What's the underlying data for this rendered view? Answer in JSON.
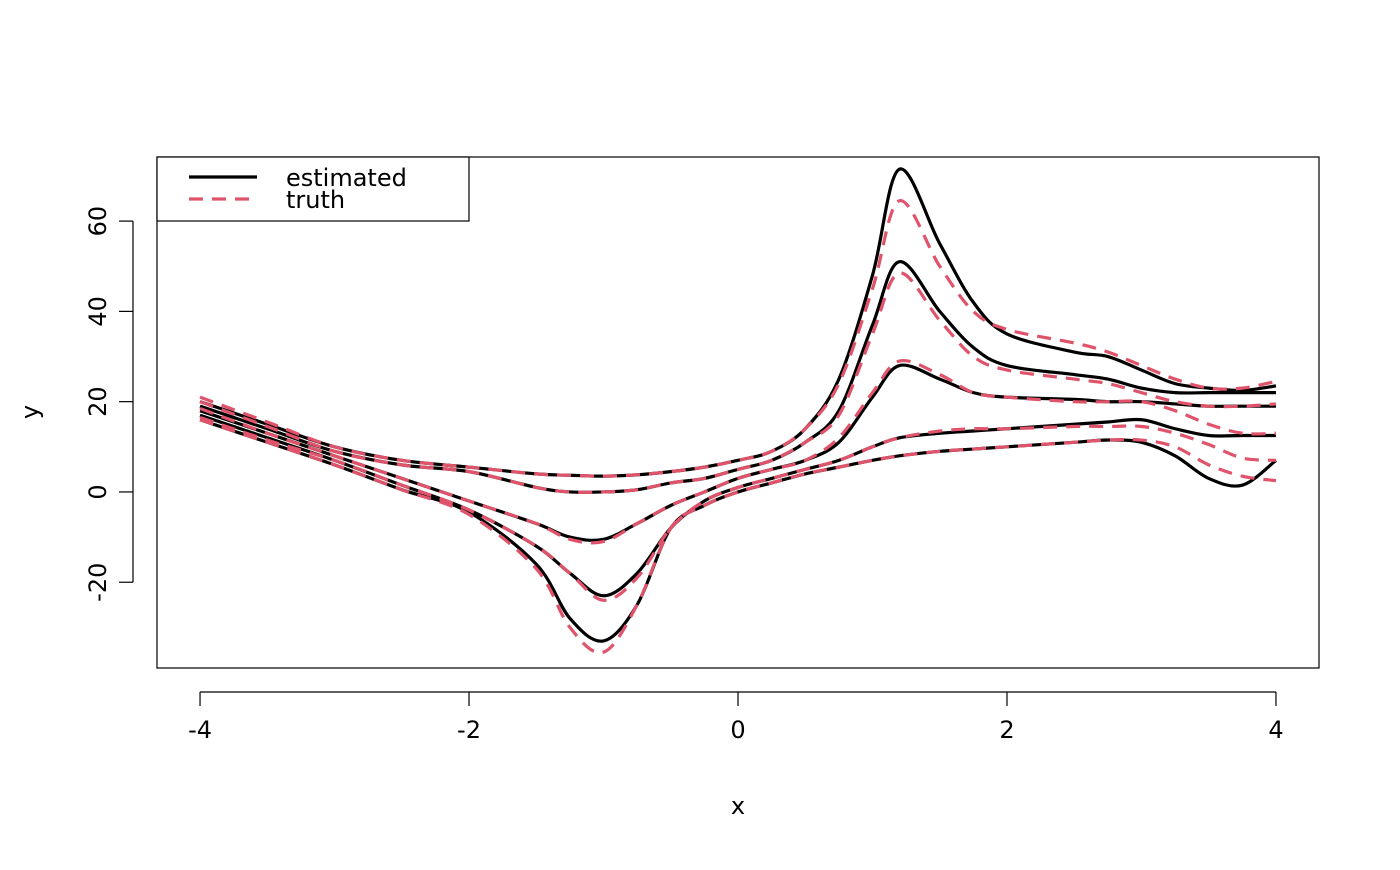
{
  "chart_data": {
    "type": "line",
    "xlabel": "x",
    "ylabel": "y",
    "xlim": [
      -4.32,
      4.32
    ],
    "ylim": [
      -39,
      74.2
    ],
    "xticks": [
      -4,
      -2,
      0,
      2,
      4
    ],
    "yticks": [
      -20,
      0,
      20,
      40,
      60
    ],
    "legend_position": "top-left",
    "legend": [
      {
        "name": "estimated",
        "color": "#000000",
        "dash": "solid"
      },
      {
        "name": "truth",
        "color": "#DF536B",
        "dash": "dashed"
      }
    ],
    "x": [
      -4,
      -3.5,
      -3,
      -2.5,
      -2,
      -1.5,
      -1.25,
      -1,
      -0.75,
      -0.5,
      -0.25,
      0,
      0.25,
      0.5,
      0.75,
      1,
      1.2,
      1.5,
      1.75,
      2,
      2.5,
      2.75,
      3,
      3.25,
      3.5,
      3.75,
      4
    ],
    "series": [
      {
        "color": "#000000",
        "dash": "solid",
        "values": [
          20,
          15,
          10,
          7,
          5.5,
          4,
          3.7,
          3.5,
          3.8,
          4.5,
          5.5,
          7,
          9,
          14,
          25,
          48,
          71.5,
          55,
          42,
          35,
          31,
          30,
          27,
          24,
          23,
          22.5,
          23.5
        ]
      },
      {
        "color": "#000000",
        "dash": "solid",
        "values": [
          19,
          14,
          9,
          6,
          4.5,
          1,
          0,
          0,
          0.5,
          2,
          3,
          5,
          7,
          11,
          18,
          37,
          51,
          40,
          32,
          28,
          26,
          25,
          23,
          22,
          22,
          22,
          22
        ]
      },
      {
        "color": "#000000",
        "dash": "solid",
        "values": [
          18,
          13,
          8,
          3,
          -2,
          -7,
          -10,
          -10.5,
          -7,
          -3,
          0,
          3,
          5,
          7,
          11,
          21,
          28,
          25,
          22,
          21,
          20.5,
          20,
          20,
          19.5,
          19,
          19,
          19
        ]
      },
      {
        "color": "#000000",
        "dash": "solid",
        "values": [
          17,
          12,
          7,
          1.5,
          -4,
          -12,
          -18,
          -23,
          -18,
          -8,
          -2,
          1,
          3,
          5,
          7,
          10,
          12,
          13,
          13.5,
          14,
          15,
          15.5,
          16,
          14,
          12.5,
          12.5,
          12.5
        ]
      },
      {
        "color": "#000000",
        "dash": "solid",
        "values": [
          16,
          11,
          6,
          0.5,
          -4.5,
          -16,
          -28,
          -33,
          -25,
          -8,
          -3,
          0,
          2,
          4,
          5.5,
          7,
          8,
          9,
          9.5,
          10,
          11,
          11.5,
          11,
          8,
          3,
          1.5,
          7
        ]
      },
      {
        "color": "#DF536B",
        "dash": "dashed",
        "values": [
          21,
          15.5,
          10,
          7,
          5.5,
          4,
          3.7,
          3.5,
          3.8,
          4.5,
          5.5,
          7,
          9,
          14,
          24,
          45,
          64.5,
          50,
          40,
          36,
          33,
          31,
          28,
          25,
          23,
          23,
          24.5
        ]
      },
      {
        "color": "#DF536B",
        "dash": "dashed",
        "values": [
          20,
          14.5,
          9,
          6,
          4.5,
          1,
          0,
          0,
          0.5,
          2,
          3,
          5,
          7,
          11,
          17,
          35,
          48.5,
          38,
          30,
          27,
          25,
          24,
          22,
          20,
          19,
          19,
          19.5
        ]
      },
      {
        "color": "#DF536B",
        "dash": "dashed",
        "values": [
          18.5,
          13,
          8,
          3,
          -2,
          -7,
          -10.5,
          -11,
          -7,
          -3,
          0,
          3,
          5,
          7,
          12,
          22,
          29,
          26,
          22,
          21,
          20,
          20,
          20,
          18,
          15,
          13,
          13
        ]
      },
      {
        "color": "#DF536B",
        "dash": "dashed",
        "values": [
          16.5,
          11.5,
          7,
          1.5,
          -4,
          -12,
          -18,
          -24,
          -19,
          -8,
          -2,
          1,
          3,
          5,
          7,
          10,
          12,
          13.5,
          14,
          14,
          14.5,
          14.5,
          14.5,
          13,
          10.5,
          7.5,
          7
        ]
      },
      {
        "color": "#DF536B",
        "dash": "dashed",
        "values": [
          16,
          11,
          6,
          0.5,
          -5,
          -17,
          -30,
          -35.5,
          -25,
          -8,
          -3,
          0,
          2,
          4,
          5.5,
          7,
          8,
          9,
          9.5,
          10,
          11,
          11.5,
          11.5,
          10,
          6,
          3.5,
          2.5
        ]
      }
    ]
  }
}
